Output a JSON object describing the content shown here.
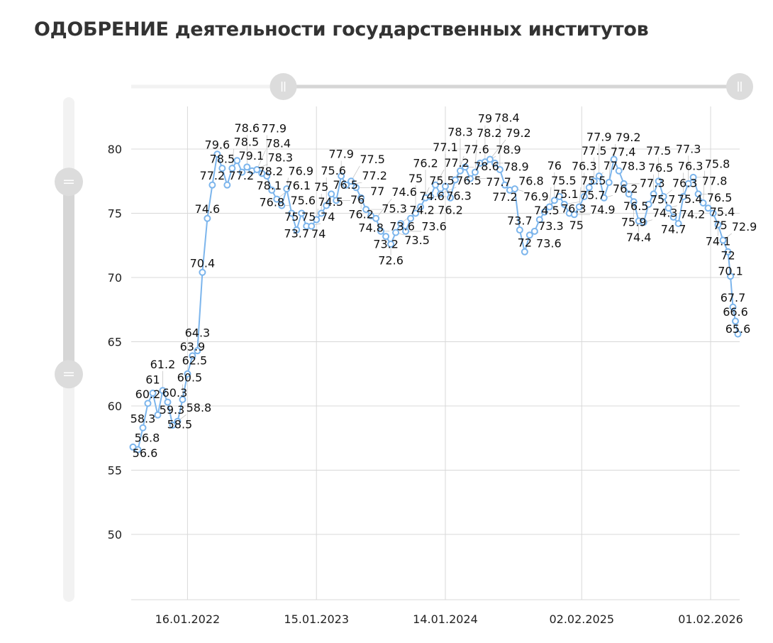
{
  "title": "ОДОБРЕНИЕ деятельности государственных институтов",
  "chart_data": {
    "type": "line",
    "title": "ОДОБРЕНИЕ деятельности государственных институтов",
    "xlabel": "",
    "ylabel": "",
    "x_ticks": [
      "16.01.2022",
      "15.01.2023",
      "14.01.2024",
      "02.02.2025",
      "01.02.2026"
    ],
    "y_ticks": [
      50,
      55,
      60,
      65,
      70,
      75,
      80
    ],
    "ylim": [
      45,
      83
    ],
    "xlim": [
      "10.08.2021",
      "24.04.2026"
    ],
    "grid": true,
    "data_labels": true,
    "color": "#7cb5ec",
    "series": [
      {
        "x": [
          "15.08.2021",
          "29.08.2021",
          "12.09.2021",
          "26.09.2021",
          "10.10.2021",
          "24.10.2021",
          "07.11.2021",
          "21.11.2021",
          "05.12.2021",
          "19.12.2021",
          "02.01.2022",
          "16.01.2022",
          "30.01.2022",
          "13.02.2022",
          "27.02.2022",
          "13.03.2022",
          "27.03.2022",
          "10.04.2022",
          "24.04.2022",
          "08.05.2022",
          "22.05.2022",
          "05.06.2022",
          "19.06.2022",
          "03.07.2022",
          "17.07.2022",
          "31.07.2022",
          "14.08.2022",
          "28.08.2022",
          "11.09.2022",
          "25.09.2022",
          "09.10.2022",
          "23.10.2022",
          "06.11.2022",
          "20.11.2022",
          "04.12.2022",
          "18.12.2022",
          "01.01.2023",
          "15.01.2023",
          "29.01.2023",
          "12.02.2023",
          "26.02.2023",
          "12.03.2023",
          "26.03.2023",
          "09.04.2023",
          "23.04.2023",
          "07.05.2023",
          "21.05.2023",
          "04.06.2023",
          "18.06.2023",
          "02.07.2023",
          "16.07.2023",
          "30.07.2023",
          "13.08.2023",
          "27.08.2023",
          "10.09.2023",
          "24.09.2023",
          "08.10.2023",
          "22.10.2023",
          "05.11.2023",
          "19.11.2023",
          "03.12.2023",
          "17.12.2023",
          "31.12.2023",
          "14.01.2024",
          "28.01.2024",
          "11.02.2024",
          "25.02.2024",
          "10.03.2024",
          "24.03.2024",
          "07.04.2024",
          "21.04.2024",
          "05.05.2024",
          "19.05.2024",
          "02.06.2024",
          "16.06.2024",
          "30.06.2024",
          "14.07.2024",
          "28.07.2024",
          "11.08.2024",
          "25.08.2024",
          "08.09.2024",
          "22.09.2024",
          "06.10.2024",
          "20.10.2024",
          "03.11.2024",
          "17.11.2024",
          "01.12.2024",
          "15.12.2024",
          "29.12.2024",
          "12.01.2025",
          "26.01.2025",
          "09.02.2025",
          "23.02.2025",
          "09.03.2025",
          "23.03.2025",
          "06.04.2025",
          "20.04.2025",
          "04.05.2025",
          "18.05.2025",
          "01.06.2025",
          "15.06.2025",
          "29.06.2025",
          "13.07.2025",
          "27.07.2025",
          "10.08.2025",
          "24.08.2025",
          "07.09.2025",
          "21.09.2025",
          "05.10.2025",
          "19.10.2025",
          "02.11.2025",
          "16.11.2025",
          "30.11.2025",
          "14.12.2025",
          "28.12.2025",
          "11.01.2026",
          "25.01.2026",
          "08.02.2026",
          "22.02.2026",
          "08.03.2026",
          "22.03.2026",
          "29.03.2026",
          "05.04.2026",
          "12.04.2026",
          "19.04.2026"
        ],
        "y": [
          56.8,
          56.6,
          58.3,
          60.2,
          61.0,
          59.3,
          61.2,
          60.3,
          58.5,
          58.8,
          60.5,
          62.5,
          63.9,
          64.3,
          70.4,
          74.6,
          77.2,
          79.6,
          78.5,
          77.2,
          78.5,
          79.1,
          78.2,
          78.6,
          78.3,
          78.4,
          78.1,
          77.9,
          76.8,
          76.1,
          75.6,
          76.9,
          75.0,
          73.7,
          75.0,
          74.0,
          74.0,
          74.5,
          75.0,
          75.6,
          76.5,
          76.0,
          77.9,
          77.2,
          77.5,
          77.0,
          76.2,
          75.3,
          74.8,
          74.6,
          73.6,
          73.2,
          72.6,
          73.5,
          74.2,
          73.6,
          74.6,
          75.0,
          75.5,
          76.2,
          76.3,
          77.2,
          76.5,
          77.1,
          76.2,
          77.6,
          78.3,
          78.6,
          77.7,
          78.2,
          78.9,
          79.0,
          79.2,
          78.9,
          78.4,
          77.2,
          76.8,
          76.9,
          73.7,
          72.0,
          73.3,
          73.6,
          74.5,
          75.1,
          75.5,
          76.0,
          76.3,
          75.7,
          75.0,
          74.9,
          75.5,
          76.3,
          77.0,
          77.5,
          77.9,
          76.2,
          77.4,
          79.2,
          78.3,
          77.3,
          76.5,
          75.9,
          74.4,
          74.3,
          75.7,
          76.5,
          77.5,
          76.3,
          75.4,
          74.7,
          74.2,
          76.3,
          77.3,
          77.8,
          76.5,
          75.8,
          75.4,
          75.0,
          74.1,
          72.9,
          72.0,
          70.1,
          67.7,
          66.6,
          65.6
        ]
      }
    ]
  },
  "range_slider": {
    "horizontal": {
      "start": 0.25,
      "end": 1.0
    },
    "vertical": {
      "start": 0.16,
      "end": 0.55
    }
  }
}
